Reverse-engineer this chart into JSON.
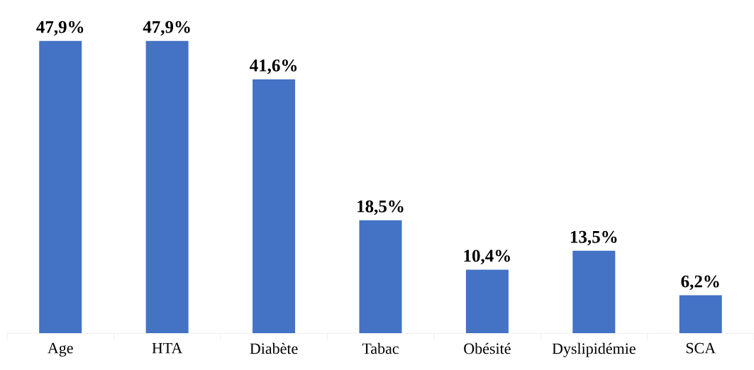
{
  "chart_data": {
    "type": "bar",
    "categories": [
      "Age",
      "HTA",
      "Diabète",
      "Tabac",
      "Obésité",
      "Dyslipidémie",
      "SCA"
    ],
    "values": [
      47.9,
      47.9,
      41.6,
      18.5,
      10.4,
      13.5,
      6.2
    ],
    "value_labels": [
      "47,9%",
      "47,9%",
      "41,6%",
      "18,5%",
      "10,4%",
      "13,5%",
      "6,2%"
    ],
    "color": "#4472c4"
  }
}
